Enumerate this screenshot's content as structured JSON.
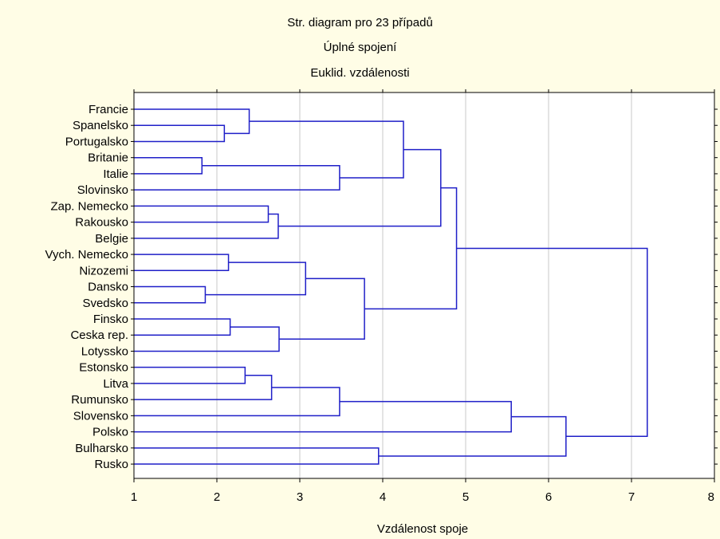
{
  "chart_data": {
    "type": "dendrogram",
    "title_lines": [
      "Str. diagram pro 23 případů",
      "Úplné spojení",
      "Euklid. vzdálenosti"
    ],
    "xlabel": "Vzdálenost spoje",
    "xlim": [
      1,
      8
    ],
    "xticks": [
      "1",
      "2",
      "3",
      "4",
      "5",
      "6",
      "7",
      "8"
    ],
    "grid": "vertical",
    "leaves": [
      "Francie",
      "Spanelsko",
      "Portugalsko",
      "Britanie",
      "Italie",
      "Slovinsko",
      "Zap. Nemecko",
      "Rakousko",
      "Belgie",
      "Vych. Nemecko",
      "Nizozemi",
      "Dansko",
      "Svedsko",
      "Finsko",
      "Ceska rep.",
      "Lotyssko",
      "Estonsko",
      "Litva",
      "Rumunsko",
      "Slovensko",
      "Polsko",
      "Bulharsko",
      "Rusko"
    ],
    "merges": [
      {
        "a": "L1",
        "b": "L2",
        "height": 2.09
      },
      {
        "a": "L0",
        "b": "N0",
        "height": 2.39
      },
      {
        "a": "L3",
        "b": "L4",
        "height": 1.82
      },
      {
        "a": "N2",
        "b": "L5",
        "height": 3.48
      },
      {
        "a": "N1",
        "b": "N3",
        "height": 4.25
      },
      {
        "a": "L6",
        "b": "L7",
        "height": 2.62
      },
      {
        "a": "N5",
        "b": "L8",
        "height": 2.74
      },
      {
        "a": "N4",
        "b": "N6",
        "height": 4.7
      },
      {
        "a": "L9",
        "b": "L10",
        "height": 2.14
      },
      {
        "a": "L11",
        "b": "L12",
        "height": 1.86
      },
      {
        "a": "N8",
        "b": "N9",
        "height": 3.07
      },
      {
        "a": "L13",
        "b": "L14",
        "height": 2.16
      },
      {
        "a": "N11",
        "b": "L15",
        "height": 2.75
      },
      {
        "a": "N10",
        "b": "N12",
        "height": 3.78
      },
      {
        "a": "N7",
        "b": "N13",
        "height": 4.89
      },
      {
        "a": "L16",
        "b": "L17",
        "height": 2.34
      },
      {
        "a": "N15",
        "b": "L18",
        "height": 2.66
      },
      {
        "a": "N16",
        "b": "L19",
        "height": 3.48
      },
      {
        "a": "N17",
        "b": "L20",
        "height": 5.55
      },
      {
        "a": "L21",
        "b": "L22",
        "height": 3.95
      },
      {
        "a": "N18",
        "b": "N19",
        "height": 6.21
      },
      {
        "a": "N14",
        "b": "N20",
        "height": 7.19
      }
    ],
    "colors": {
      "branches": "#1f1fc8",
      "grid": "#c8c8c8",
      "axis": "#000000",
      "plot_bg": "#ffffff",
      "outer_bg": "#fffde6"
    }
  }
}
